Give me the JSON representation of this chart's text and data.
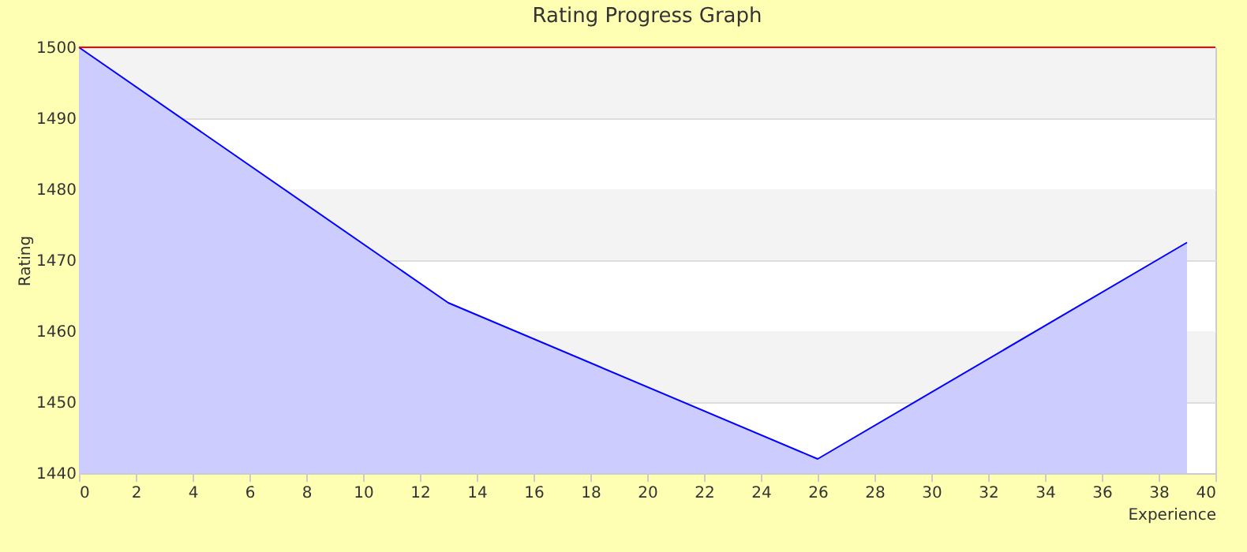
{
  "chart_data": {
    "type": "area",
    "title": "Rating Progress Graph",
    "xlabel": "Experience",
    "ylabel": "Rating",
    "x": [
      0,
      13,
      26,
      39
    ],
    "series": [
      {
        "color": "#0000ff",
        "values": [
          1500,
          1464,
          1442,
          1472.5
        ]
      }
    ],
    "xlim": [
      0,
      40
    ],
    "xticks": [
      0,
      2,
      4,
      6,
      8,
      10,
      12,
      14,
      16,
      18,
      20,
      22,
      24,
      26,
      28,
      30,
      32,
      34,
      36,
      38,
      40
    ],
    "ylim": [
      1440,
      1500
    ],
    "yticks": [
      1440,
      1450,
      1460,
      1470,
      1480,
      1490,
      1500
    ],
    "ref_lines": [
      {
        "axis": "y",
        "value": 1500,
        "color": "#ff0000"
      }
    ],
    "bands": [
      {
        "axis": "y",
        "from": 1450,
        "to": 1460,
        "color": "#f3f3f3"
      },
      {
        "axis": "y",
        "from": 1470,
        "to": 1480,
        "color": "#f3f3f3"
      },
      {
        "axis": "y",
        "from": 1490,
        "to": 1500,
        "color": "#f3f3f3"
      }
    ],
    "grid": "y"
  }
}
